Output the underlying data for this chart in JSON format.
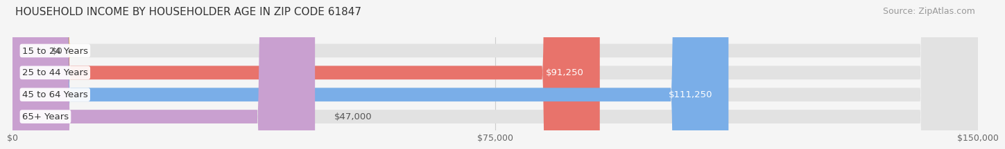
{
  "title": "HOUSEHOLD INCOME BY HOUSEHOLDER AGE IN ZIP CODE 61847",
  "source": "Source: ZipAtlas.com",
  "categories": [
    "15 to 24 Years",
    "25 to 44 Years",
    "45 to 64 Years",
    "65+ Years"
  ],
  "values": [
    0,
    91250,
    111250,
    47000
  ],
  "bar_colors": [
    "#f0c070",
    "#e8736b",
    "#7aaee8",
    "#c9a0d0"
  ],
  "value_labels": [
    "$0",
    "$91,250",
    "$111,250",
    "$47,000"
  ],
  "value_label_inside": [
    false,
    true,
    true,
    false
  ],
  "background_color": "#f5f5f5",
  "bar_bg_color": "#e2e2e2",
  "xlim": [
    0,
    150000
  ],
  "xticks": [
    0,
    75000,
    150000
  ],
  "xtick_labels": [
    "$0",
    "$75,000",
    "$150,000"
  ],
  "bar_height": 0.62,
  "title_fontsize": 11,
  "source_fontsize": 9,
  "label_fontsize": 9.5,
  "tick_fontsize": 9
}
